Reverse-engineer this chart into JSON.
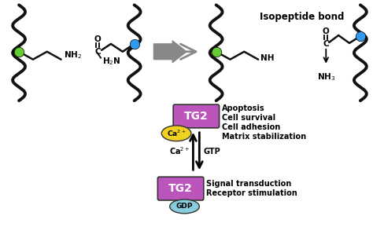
{
  "bg_color": "#ffffff",
  "membrane_color": "#111111",
  "box_color": "#bb55bb",
  "ca_fill": "#f0d020",
  "gdp_fill": "#88ccdd",
  "green_dot": "#66cc33",
  "blue_dot": "#3399ee",
  "gray_arrow": "#888888",
  "title": "Isopeptide bond",
  "upper_labels": [
    "Apoptosis",
    "Cell survival",
    "Cell adhesion",
    "Matrix stabilization"
  ],
  "lower_labels": [
    "Signal transduction",
    "Receptor stimulation"
  ],
  "tg2": "TG2",
  "ca_text": "Ca$^{2+}$",
  "gtp_text": "GTP",
  "gdp_text": "GDP"
}
